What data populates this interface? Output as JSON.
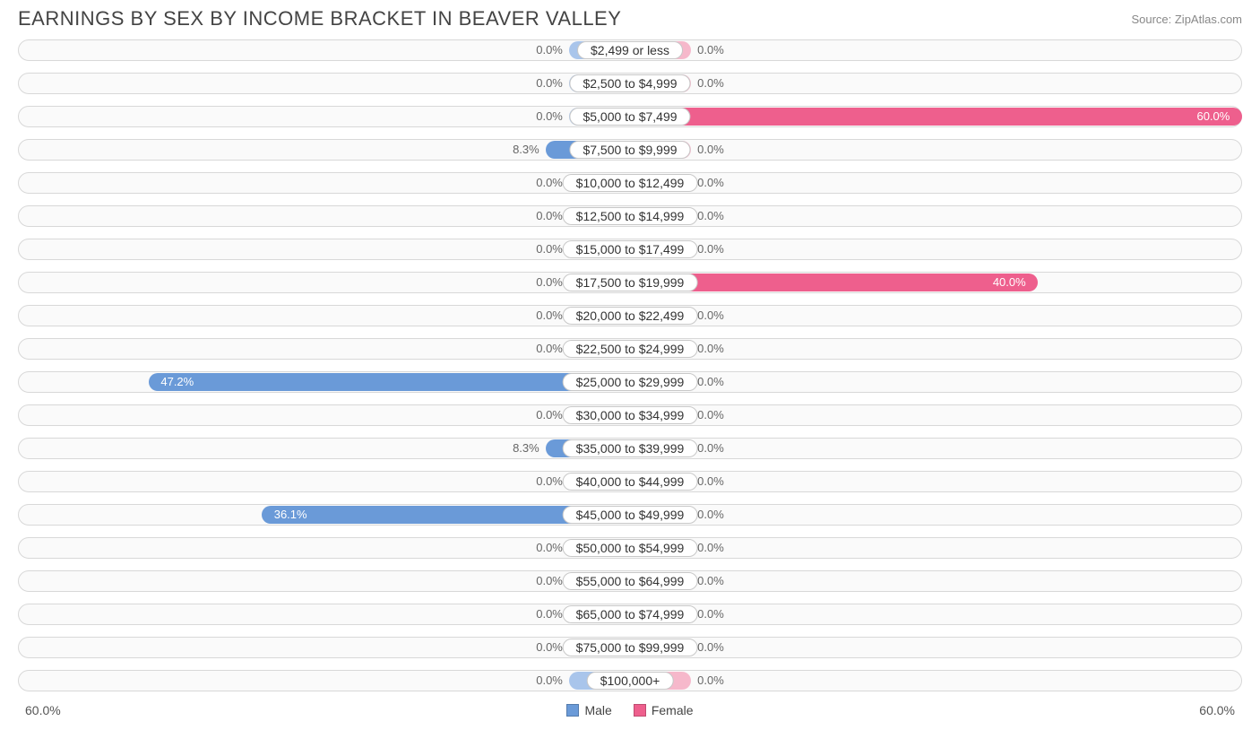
{
  "title": "EARNINGS BY SEX BY INCOME BRACKET IN BEAVER VALLEY",
  "source": "Source: ZipAtlas.com",
  "chart": {
    "type": "diverging-bar",
    "axis_max_pct": 60.0,
    "axis_label_left": "60.0%",
    "axis_label_right": "60.0%",
    "min_bar_pct": 6.0,
    "label_half_width_pct": 12.0,
    "male_color_light": "#a9c5eb",
    "male_color_dark": "#6a9ad8",
    "female_color_light": "#f6b8cb",
    "female_color_dark": "#ee5f8d",
    "row_bg_color": "#fafafa",
    "row_border_color": "#d8d8d8",
    "value_text_color": "#666",
    "value_text_color_inbar": "#fff",
    "legend": {
      "male_label": "Male",
      "female_label": "Female"
    },
    "rows": [
      {
        "label": "$2,499 or less",
        "male": 0.0,
        "female": 0.0
      },
      {
        "label": "$2,500 to $4,999",
        "male": 0.0,
        "female": 0.0
      },
      {
        "label": "$5,000 to $7,499",
        "male": 0.0,
        "female": 60.0
      },
      {
        "label": "$7,500 to $9,999",
        "male": 8.3,
        "female": 0.0
      },
      {
        "label": "$10,000 to $12,499",
        "male": 0.0,
        "female": 0.0
      },
      {
        "label": "$12,500 to $14,999",
        "male": 0.0,
        "female": 0.0
      },
      {
        "label": "$15,000 to $17,499",
        "male": 0.0,
        "female": 0.0
      },
      {
        "label": "$17,500 to $19,999",
        "male": 0.0,
        "female": 40.0
      },
      {
        "label": "$20,000 to $22,499",
        "male": 0.0,
        "female": 0.0
      },
      {
        "label": "$22,500 to $24,999",
        "male": 0.0,
        "female": 0.0
      },
      {
        "label": "$25,000 to $29,999",
        "male": 47.2,
        "female": 0.0
      },
      {
        "label": "$30,000 to $34,999",
        "male": 0.0,
        "female": 0.0
      },
      {
        "label": "$35,000 to $39,999",
        "male": 8.3,
        "female": 0.0
      },
      {
        "label": "$40,000 to $44,999",
        "male": 0.0,
        "female": 0.0
      },
      {
        "label": "$45,000 to $49,999",
        "male": 36.1,
        "female": 0.0
      },
      {
        "label": "$50,000 to $54,999",
        "male": 0.0,
        "female": 0.0
      },
      {
        "label": "$55,000 to $64,999",
        "male": 0.0,
        "female": 0.0
      },
      {
        "label": "$65,000 to $74,999",
        "male": 0.0,
        "female": 0.0
      },
      {
        "label": "$75,000 to $99,999",
        "male": 0.0,
        "female": 0.0
      },
      {
        "label": "$100,000+",
        "male": 0.0,
        "female": 0.0
      }
    ]
  }
}
